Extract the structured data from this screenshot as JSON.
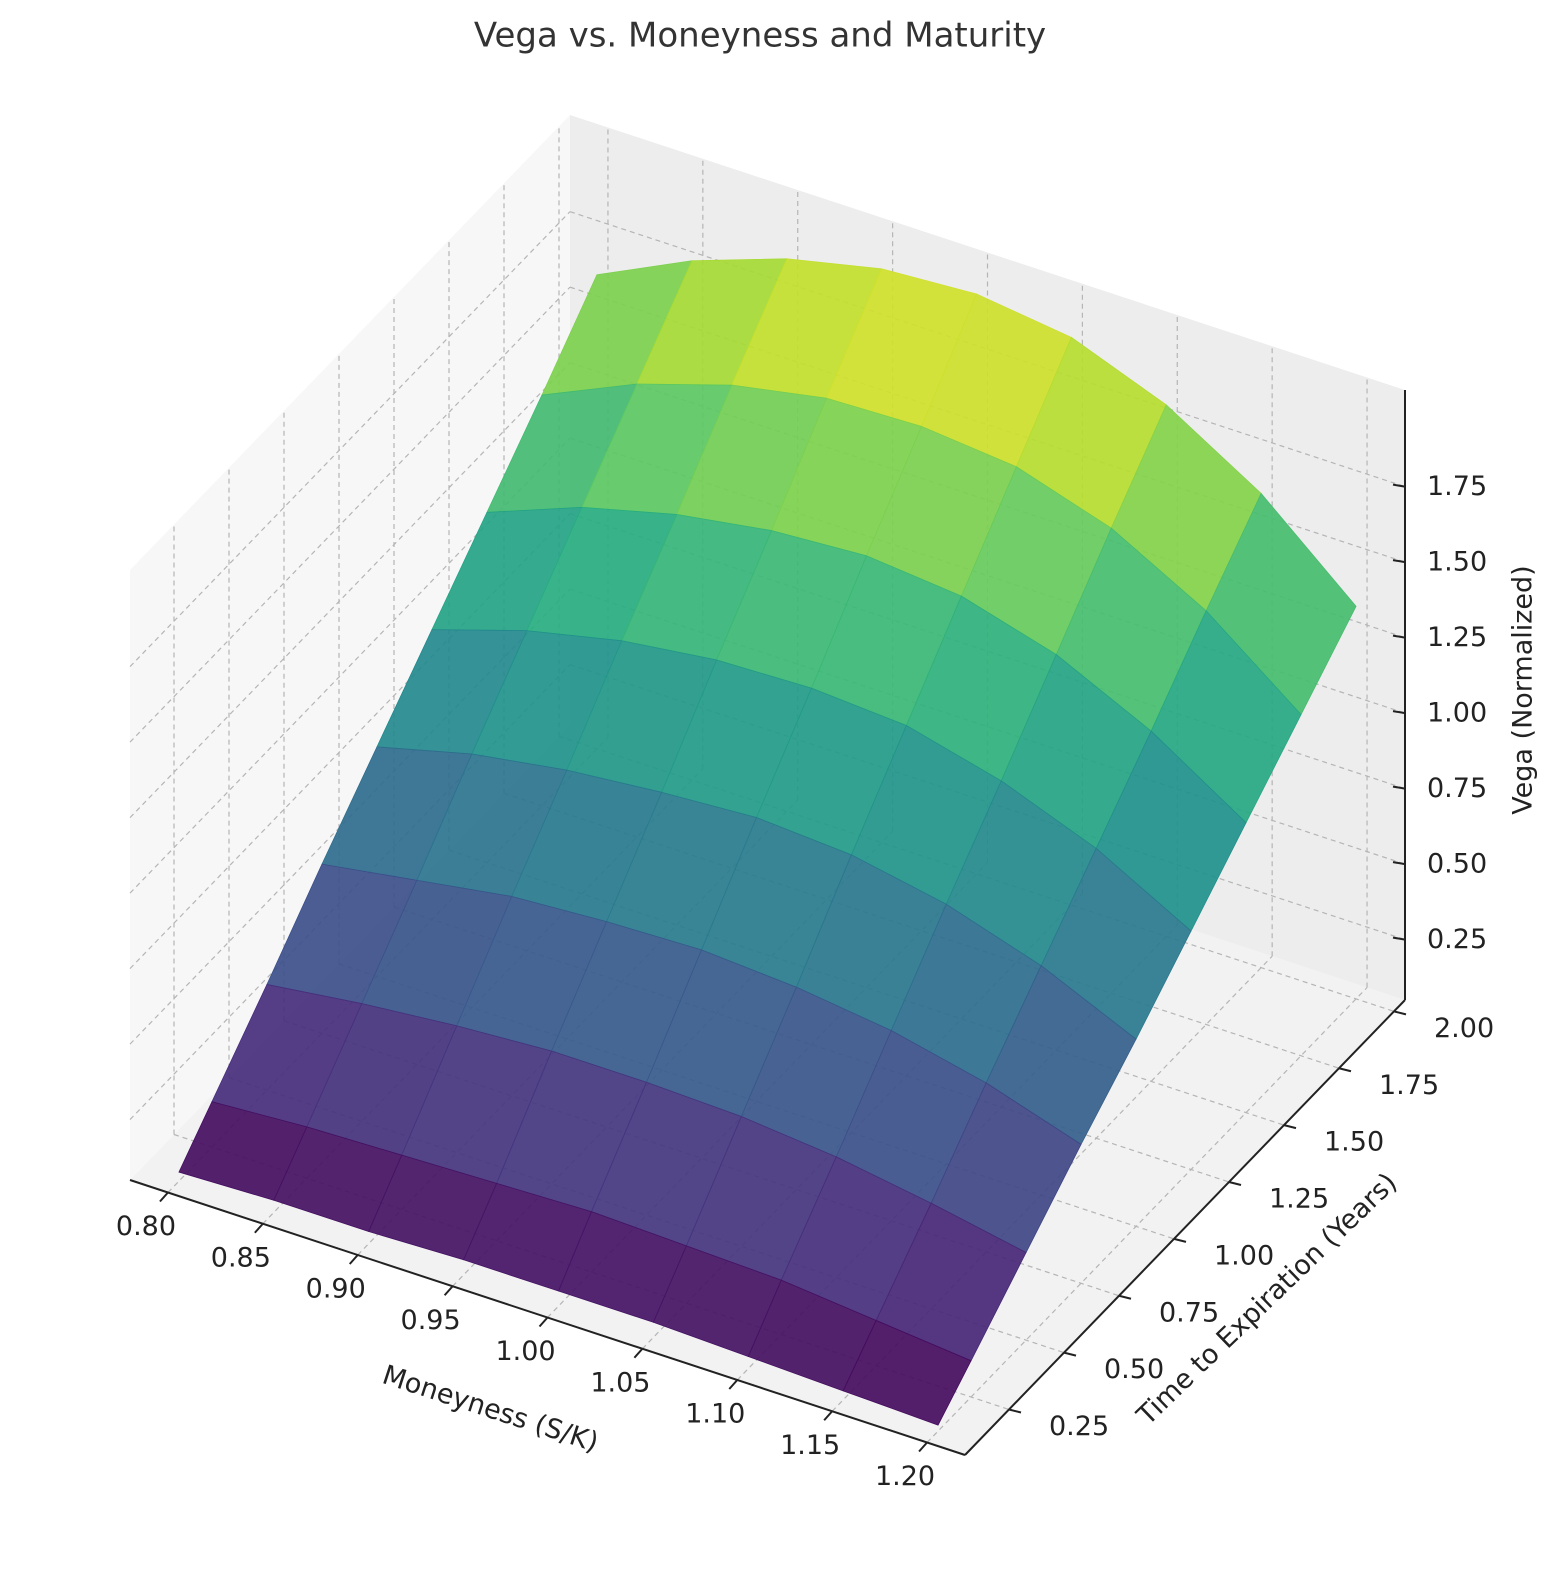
{
  "chart_data": {
    "type": "surface",
    "title": "Vega vs. Moneyness and Maturity",
    "x_label": "Moneyness (S/K)",
    "y_label": "Time to Expiration (Years)",
    "z_label": "Vega (Normalized)",
    "x": [
      0.8,
      0.85,
      0.9,
      0.95,
      1.0,
      1.05,
      1.1,
      1.15,
      1.2
    ],
    "y": [
      0.1,
      0.25,
      0.5,
      0.75,
      1.0,
      1.25,
      1.5,
      1.75,
      2.0
    ],
    "z": [
      [
        0.08,
        0.09,
        0.09,
        0.1,
        0.1,
        0.1,
        0.09,
        0.08,
        0.07
      ],
      [
        0.2,
        0.22,
        0.23,
        0.24,
        0.25,
        0.24,
        0.23,
        0.2,
        0.17
      ],
      [
        0.4,
        0.44,
        0.47,
        0.49,
        0.49,
        0.48,
        0.45,
        0.4,
        0.34
      ],
      [
        0.61,
        0.66,
        0.71,
        0.73,
        0.74,
        0.72,
        0.68,
        0.61,
        0.51
      ],
      [
        0.81,
        0.89,
        0.94,
        0.97,
        0.99,
        0.97,
        0.91,
        0.81,
        0.67
      ],
      [
        1.01,
        1.11,
        1.18,
        1.22,
        1.23,
        1.21,
        1.13,
        1.01,
        0.84
      ],
      [
        1.21,
        1.33,
        1.41,
        1.46,
        1.48,
        1.45,
        1.36,
        1.21,
        1.01
      ],
      [
        1.41,
        1.55,
        1.65,
        1.71,
        1.72,
        1.69,
        1.59,
        1.42,
        1.18
      ],
      [
        1.62,
        1.77,
        1.88,
        1.95,
        1.97,
        1.93,
        1.81,
        1.62,
        1.35
      ]
    ],
    "colormap": "viridis",
    "xlim": [
      0.78,
      1.22
    ],
    "ylim": [
      0.05,
      2.05
    ],
    "zlim": [
      0.05,
      2.07
    ],
    "xticks": [
      {
        "value": 0.8,
        "label": "0.80"
      },
      0.85,
      {
        "value": 0.9,
        "label": "0.90"
      },
      0.95,
      {
        "value": 1.0,
        "label": "1.00"
      },
      1.05,
      {
        "value": 1.1,
        "label": "1.10"
      },
      1.15,
      {
        "value": 1.2,
        "label": "1.20"
      }
    ],
    "yticks": [
      0.25,
      {
        "value": 0.5,
        "label": "0.50"
      },
      0.75,
      {
        "value": 1.0,
        "label": "1.00"
      },
      1.25,
      {
        "value": 1.5,
        "label": "1.50"
      },
      1.75,
      {
        "value": 2.0,
        "label": "2.00"
      }
    ],
    "zticks": [
      0.25,
      {
        "value": 0.5,
        "label": "0.50"
      },
      0.75,
      {
        "value": 1.0,
        "label": "1.00"
      },
      1.25,
      {
        "value": 1.5,
        "label": "1.50"
      },
      1.75
    ],
    "grid": true
  }
}
